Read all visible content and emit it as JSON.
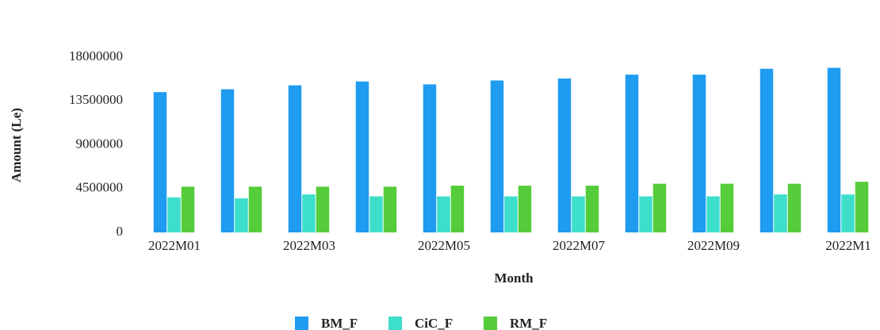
{
  "chart_data": {
    "type": "bar",
    "x_label": "Month",
    "y_label": "Amount (Le)",
    "categories": [
      "2022M01",
      null,
      "2022M03",
      null,
      "2022M05",
      null,
      "2022M07",
      null,
      "2022M09",
      null,
      "2022M1"
    ],
    "series": [
      {
        "name": "BM_F",
        "color": "#1f9bf0",
        "values": [
          14400000,
          14700000,
          15100000,
          15500000,
          15200000,
          15600000,
          15800000,
          16200000,
          16200000,
          16800000,
          16900000
        ]
      },
      {
        "name": "CiC_F",
        "color": "#3ddfcb",
        "values": [
          3600000,
          3500000,
          3900000,
          3700000,
          3700000,
          3700000,
          3700000,
          3700000,
          3700000,
          3900000,
          3900000
        ]
      },
      {
        "name": "RM_F",
        "color": "#55cc3a",
        "values": [
          4700000,
          4700000,
          4700000,
          4700000,
          4800000,
          4800000,
          4800000,
          5000000,
          5000000,
          5000000,
          5200000
        ]
      }
    ],
    "ylim": [
      0,
      18000000
    ],
    "yticks": [
      0,
      4500000,
      9000000,
      13500000,
      18000000
    ],
    "grid": false,
    "legend": "bottom"
  }
}
